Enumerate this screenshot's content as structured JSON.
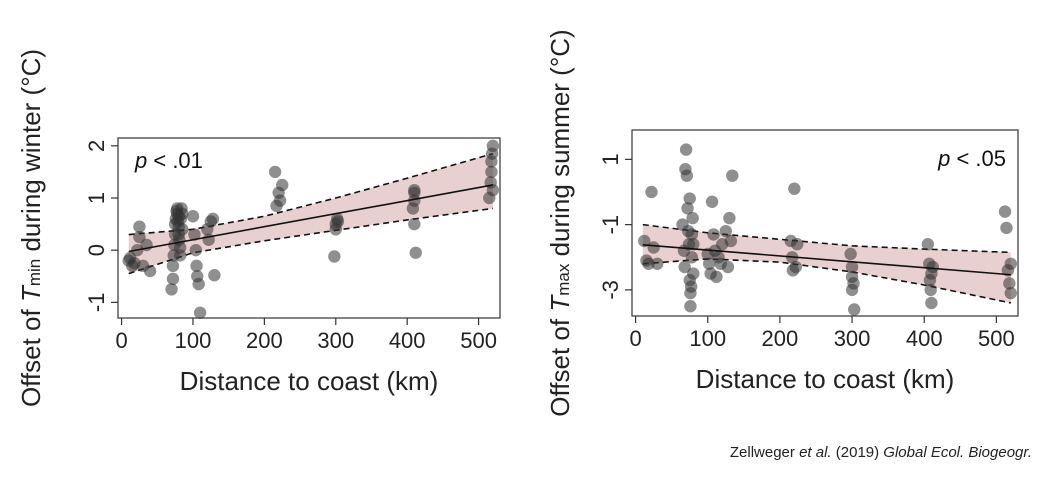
{
  "citation": {
    "author": "Zellweger",
    "etal": "et al.",
    "year": "(2019)",
    "journal": "Global Ecol. Biogeogr."
  },
  "chart_data": [
    {
      "type": "scatter",
      "ylabel_prefix": "Offset of ",
      "ylabel_var": "T",
      "ylabel_sub": "min",
      "ylabel_suffix": " during winter (°C)",
      "xlabel": "Distance to coast (km)",
      "p_prefix": "p",
      "p_value": " < .01",
      "p_position": "top-left",
      "xlim": [
        -5,
        530
      ],
      "ylim": [
        -1.3,
        2.15
      ],
      "xticks": [
        0,
        100,
        200,
        300,
        400,
        500
      ],
      "xtick_labels": [
        "0",
        "100",
        "200",
        "300",
        "400",
        "500"
      ],
      "yticks": [
        -1,
        0,
        1,
        2
      ],
      "ytick_labels": [
        "-1",
        "0",
        "1",
        "2"
      ],
      "grid": false,
      "point_color": "#333333",
      "ci_color": "#e8cfd0",
      "regression": {
        "intercept": -0.05,
        "slope": 0.0025
      },
      "ci_lower": [
        [
          10,
          -0.45
        ],
        [
          100,
          -0.05
        ],
        [
          200,
          0.18
        ],
        [
          300,
          0.38
        ],
        [
          400,
          0.58
        ],
        [
          520,
          0.8
        ]
      ],
      "ci_upper": [
        [
          10,
          0.3
        ],
        [
          100,
          0.4
        ],
        [
          200,
          0.65
        ],
        [
          300,
          1.0
        ],
        [
          400,
          1.38
        ],
        [
          520,
          1.85
        ]
      ],
      "points": [
        [
          10,
          -0.2
        ],
        [
          12,
          -0.15
        ],
        [
          15,
          -0.3
        ],
        [
          18,
          -0.25
        ],
        [
          22,
          0.0
        ],
        [
          25,
          0.25
        ],
        [
          25,
          0.45
        ],
        [
          30,
          -0.3
        ],
        [
          35,
          0.1
        ],
        [
          40,
          -0.4
        ],
        [
          70,
          -0.75
        ],
        [
          72,
          -0.55
        ],
        [
          72,
          -0.3
        ],
        [
          73,
          -0.1
        ],
        [
          74,
          0.1
        ],
        [
          75,
          0.3
        ],
        [
          75,
          0.5
        ],
        [
          76,
          0.6
        ],
        [
          77,
          0.75
        ],
        [
          78,
          0.8
        ],
        [
          78,
          0.7
        ],
        [
          79,
          0.55
        ],
        [
          80,
          0.65
        ],
        [
          80,
          0.45
        ],
        [
          80,
          0.3
        ],
        [
          81,
          0.2
        ],
        [
          82,
          0.05
        ],
        [
          82,
          -0.1
        ],
        [
          83,
          0.6
        ],
        [
          84,
          0.8
        ],
        [
          85,
          0.4
        ],
        [
          85,
          0.7
        ],
        [
          100,
          0.65
        ],
        [
          102,
          0.3
        ],
        [
          104,
          0.0
        ],
        [
          105,
          -0.3
        ],
        [
          106,
          -0.5
        ],
        [
          108,
          -0.65
        ],
        [
          110,
          -1.2
        ],
        [
          120,
          0.4
        ],
        [
          122,
          0.2
        ],
        [
          125,
          0.55
        ],
        [
          128,
          0.6
        ],
        [
          130,
          -0.48
        ],
        [
          215,
          1.5
        ],
        [
          217,
          0.85
        ],
        [
          220,
          1.1
        ],
        [
          222,
          0.95
        ],
        [
          225,
          1.25
        ],
        [
          298,
          -0.12
        ],
        [
          300,
          0.4
        ],
        [
          300,
          0.5
        ],
        [
          302,
          0.6
        ],
        [
          303,
          0.55
        ],
        [
          408,
          0.8
        ],
        [
          410,
          0.5
        ],
        [
          410,
          1.1
        ],
        [
          410,
          1.15
        ],
        [
          410,
          0.95
        ],
        [
          412,
          -0.05
        ],
        [
          515,
          1.0
        ],
        [
          517,
          1.3
        ],
        [
          518,
          1.5
        ],
        [
          518,
          1.7
        ],
        [
          519,
          1.85
        ],
        [
          520,
          2.0
        ],
        [
          520,
          1.15
        ]
      ]
    },
    {
      "type": "scatter",
      "ylabel_prefix": "Offset of ",
      "ylabel_var": "T",
      "ylabel_sub": "max",
      "ylabel_suffix": " during summer (°C)",
      "xlabel": "Distance to coast (km)",
      "p_prefix": "p",
      "p_value": " < .05",
      "p_position": "top-right",
      "xlim": [
        -5,
        530
      ],
      "ylim": [
        -3.8,
        1.9
      ],
      "xticks": [
        0,
        100,
        200,
        300,
        400,
        500
      ],
      "xtick_labels": [
        "0",
        "100",
        "200",
        "300",
        "400",
        "500"
      ],
      "yticks": [
        -3,
        -1,
        1
      ],
      "ytick_labels": [
        "-3",
        "-1",
        "1"
      ],
      "grid": false,
      "point_color": "#333333",
      "ci_color": "#e8cfd0",
      "regression": {
        "intercept": -1.6,
        "slope": -0.0018
      },
      "ci_lower": [
        [
          10,
          -2.2
        ],
        [
          100,
          -2.05
        ],
        [
          200,
          -2.15
        ],
        [
          300,
          -2.45
        ],
        [
          400,
          -2.85
        ],
        [
          520,
          -3.4
        ]
      ],
      "ci_upper": [
        [
          10,
          -1.0
        ],
        [
          100,
          -1.25
        ],
        [
          200,
          -1.45
        ],
        [
          300,
          -1.65
        ],
        [
          400,
          -1.75
        ],
        [
          520,
          -1.85
        ]
      ],
      "points": [
        [
          12,
          -1.5
        ],
        [
          15,
          -2.1
        ],
        [
          18,
          -2.2
        ],
        [
          22,
          0.0
        ],
        [
          25,
          -1.7
        ],
        [
          30,
          -2.2
        ],
        [
          65,
          -1.0
        ],
        [
          67,
          -1.8
        ],
        [
          68,
          -2.3
        ],
        [
          69,
          0.7
        ],
        [
          70,
          1.3
        ],
        [
          71,
          0.5
        ],
        [
          72,
          -0.5
        ],
        [
          73,
          -1.2
        ],
        [
          74,
          -1.6
        ],
        [
          75,
          -0.2
        ],
        [
          75,
          -2.7
        ],
        [
          76,
          -3.1
        ],
        [
          76,
          -3.5
        ],
        [
          77,
          -2.9
        ],
        [
          78,
          -2.0
        ],
        [
          78,
          -1.3
        ],
        [
          79,
          -0.8
        ],
        [
          80,
          -1.6
        ],
        [
          80,
          -2.5
        ],
        [
          100,
          -1.9
        ],
        [
          102,
          -2.2
        ],
        [
          104,
          -2.5
        ],
        [
          106,
          -0.3
        ],
        [
          108,
          -1.3
        ],
        [
          110,
          -1.8
        ],
        [
          112,
          -2.6
        ],
        [
          115,
          -2.0
        ],
        [
          118,
          -2.2
        ],
        [
          120,
          -1.6
        ],
        [
          125,
          -1.2
        ],
        [
          128,
          -2.3
        ],
        [
          130,
          -0.8
        ],
        [
          132,
          -1.5
        ],
        [
          134,
          0.5
        ],
        [
          215,
          -1.5
        ],
        [
          217,
          -2.0
        ],
        [
          218,
          -2.4
        ],
        [
          220,
          0.1
        ],
        [
          222,
          -2.3
        ],
        [
          224,
          -1.6
        ],
        [
          298,
          -1.9
        ],
        [
          300,
          -2.6
        ],
        [
          300,
          -3.0
        ],
        [
          300,
          -2.3
        ],
        [
          302,
          -2.8
        ],
        [
          303,
          -3.6
        ],
        [
          405,
          -1.6
        ],
        [
          407,
          -2.2
        ],
        [
          408,
          -2.7
        ],
        [
          409,
          -3.0
        ],
        [
          410,
          -3.4
        ],
        [
          410,
          -2.5
        ],
        [
          412,
          -2.3
        ],
        [
          512,
          -0.6
        ],
        [
          514,
          -1.1
        ],
        [
          516,
          -2.4
        ],
        [
          518,
          -2.8
        ],
        [
          520,
          -3.1
        ],
        [
          520,
          -2.2
        ]
      ]
    }
  ]
}
